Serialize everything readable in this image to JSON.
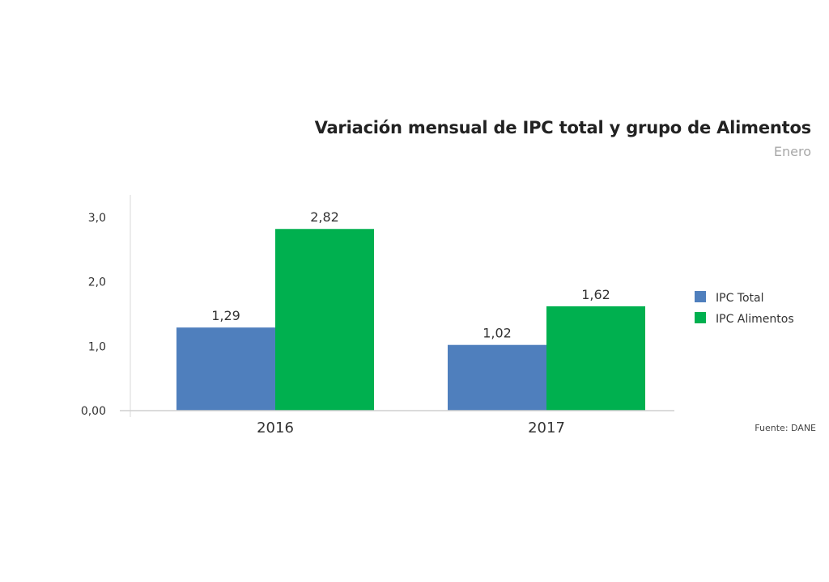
{
  "chart_data": {
    "type": "bar",
    "title": "Variación mensual de IPC total y grupo de Alimentos",
    "subtitle": "Enero",
    "categories": [
      "2016",
      "2017"
    ],
    "series": [
      {
        "name": "IPC Total",
        "values": [
          1.29,
          1.02
        ],
        "labels": [
          "1,29",
          "1,02"
        ],
        "color": "#4f7fbd"
      },
      {
        "name": "IPC Alimentos",
        "values": [
          2.82,
          1.62
        ],
        "labels": [
          "2,82",
          "1,62"
        ],
        "color": "#00b04f"
      }
    ],
    "yticks": [
      {
        "value": 0,
        "label": "0,00"
      },
      {
        "value": 1,
        "label": "1,0"
      },
      {
        "value": 2,
        "label": "2,0"
      },
      {
        "value": 3,
        "label": "3,0"
      }
    ],
    "ylim": [
      0,
      3.35
    ],
    "grid": false,
    "legend_position": "right",
    "source": "Fuente: DANE"
  }
}
